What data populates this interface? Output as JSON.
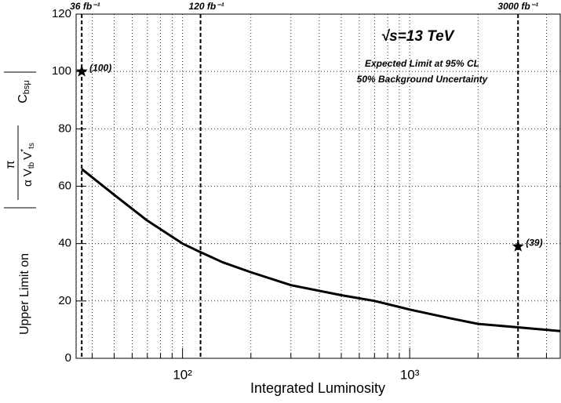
{
  "chart_data": {
    "type": "line",
    "xlabel": "Integrated Luminosity",
    "ylabel": {
      "text": "Upper Limit on",
      "numerator": "π",
      "denominator": "α V",
      "sub1": "tb",
      "mid": "V",
      "sup": "*",
      "sub2": "ts",
      "factor": "C",
      "factor_sub": "bsμ"
    },
    "annotations": [
      "√s=13 TeV",
      "Expected Limit at 95% CL",
      "50% Background Uncertainty"
    ],
    "x": [
      36,
      50,
      70,
      100,
      120,
      150,
      200,
      300,
      500,
      700,
      1000,
      1500,
      2000,
      3000,
      4600
    ],
    "series": [
      {
        "name": "Expected limit",
        "color": "#000000",
        "values": [
          66,
          57,
          48,
          40,
          37,
          33.5,
          30,
          25.5,
          22,
          20,
          17,
          14,
          12,
          10.8,
          9.5
        ]
      }
    ],
    "vlines": [
      {
        "value": 36,
        "label": "36 fb⁻¹"
      },
      {
        "value": 120,
        "label": "120 fb⁻¹"
      },
      {
        "value": 3000,
        "label": "3000 fb⁻¹"
      }
    ],
    "markers": [
      {
        "x": 36,
        "y": 100,
        "label": "(100)"
      },
      {
        "x": 3000,
        "y": 39,
        "label": "(39)"
      }
    ],
    "xlim": [
      34,
      4600
    ],
    "ylim": [
      0,
      120
    ],
    "log_x": true,
    "xticks": [
      {
        "value": 100,
        "label": "10²"
      },
      {
        "value": 1000,
        "label": "10³"
      }
    ],
    "x_minor_ticks": [
      40,
      50,
      60,
      70,
      80,
      90,
      200,
      300,
      400,
      500,
      600,
      700,
      800,
      900,
      2000,
      3000,
      4000
    ],
    "yticks": [
      0,
      20,
      40,
      60,
      80,
      100,
      120
    ],
    "grid": true
  }
}
